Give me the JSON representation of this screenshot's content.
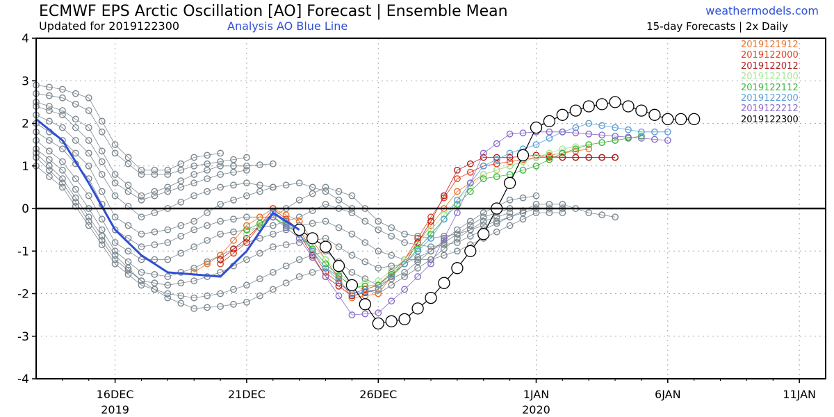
{
  "header": {
    "title": "ECMWF EPS Arctic Oscillation [AO] Forecast | Ensemble Mean",
    "subtitle": "Updated for 2019122300",
    "analysis_label": "Analysis AO Blue Line",
    "brand": "weathermodels.com",
    "subtitle_right": "15-day Forecasts | 2x Daily"
  },
  "chart_data": {
    "type": "line",
    "x_unit": "date",
    "xlim": [
      "2019-12-13",
      "2020-01-12"
    ],
    "ylim": [
      -4,
      4
    ],
    "yticks": [
      -4,
      -3,
      -2,
      -1,
      0,
      1,
      2,
      3,
      4
    ],
    "xticks": [
      {
        "date": "2019-12-16",
        "label": "16DEC",
        "sublabel": "2019"
      },
      {
        "date": "2019-12-21",
        "label": "21DEC",
        "sublabel": ""
      },
      {
        "date": "2019-12-26",
        "label": "26DEC",
        "sublabel": ""
      },
      {
        "date": "2020-01-01",
        "label": "1JAN",
        "sublabel": "2020"
      },
      {
        "date": "2020-01-06",
        "label": "6JAN",
        "sublabel": ""
      },
      {
        "date": "2020-01-11",
        "label": "11JAN",
        "sublabel": ""
      }
    ],
    "grid": true,
    "zero_line": true,
    "legend_position": "top-right",
    "analysis": {
      "color": "#2f4fd6",
      "points": [
        [
          "2019-12-13",
          2.1
        ],
        [
          "2019-12-14",
          1.6
        ],
        [
          "2019-12-15",
          0.6
        ],
        [
          "2019-12-16",
          -0.5
        ],
        [
          "2019-12-17",
          -1.1
        ],
        [
          "2019-12-18",
          -1.5
        ],
        [
          "2019-12-19",
          -1.55
        ],
        [
          "2019-12-20",
          -1.6
        ],
        [
          "2019-12-21",
          -1.0
        ],
        [
          "2019-12-22",
          -0.1
        ],
        [
          "2019-12-23",
          -0.5
        ]
      ]
    },
    "series": [
      {
        "name": "2019121912",
        "color": "#e8742a",
        "start": "2019-12-19",
        "values": [
          -1.5,
          -1.1,
          -0.4,
          0.0,
          -0.3,
          -1.2,
          -2.1,
          -2.0,
          -1.2,
          -0.4,
          0.4,
          0.8,
          1.0,
          1.2,
          1.3,
          1.4
        ]
      },
      {
        "name": "2019122000",
        "color": "#e0421f",
        "start": "2019-12-20",
        "values": [
          -1.3,
          -0.8,
          0.0,
          -0.5,
          -1.5,
          -2.0,
          -1.8,
          -1.2,
          -0.2,
          0.7,
          1.0,
          1.1,
          1.2,
          1.2,
          1.2,
          1.2
        ]
      },
      {
        "name": "2019122012",
        "color": "#b22020",
        "start": "2019-12-20",
        "values": [
          -1.2,
          -0.7,
          -0.1,
          -0.6,
          -1.6,
          -2.05,
          -1.9,
          -1.3,
          -0.3,
          0.9,
          1.2,
          1.2,
          1.25,
          1.2,
          1.2,
          1.2
        ]
      },
      {
        "name": "2019122100",
        "color": "#a6e69a",
        "start": "2019-12-21",
        "values": [
          -0.6,
          -0.2,
          -0.5,
          -1.2,
          -1.8,
          -1.7,
          -1.2,
          -0.5,
          0.2,
          0.8,
          1.0,
          1.2,
          1.4,
          1.5,
          1.6,
          1.7
        ]
      },
      {
        "name": "2019122112",
        "color": "#3db63d",
        "start": "2019-12-21",
        "values": [
          -0.5,
          -0.2,
          -0.6,
          -1.3,
          -1.85,
          -1.8,
          -1.3,
          -0.6,
          0.1,
          0.7,
          0.8,
          1.0,
          1.3,
          1.5,
          1.6,
          1.7
        ]
      },
      {
        "name": "2019122200",
        "color": "#5aa0d8",
        "start": "2019-12-22",
        "values": [
          -0.1,
          -0.6,
          -1.4,
          -2.0,
          -1.9,
          -1.3,
          -0.7,
          0.2,
          1.0,
          1.3,
          1.5,
          1.8,
          2.0,
          1.9,
          1.8,
          1.8
        ]
      },
      {
        "name": "2019122212",
        "color": "#8a6cc8",
        "start": "2019-12-22",
        "values": [
          -0.2,
          -0.7,
          -1.6,
          -2.5,
          -2.45,
          -1.9,
          -1.3,
          -0.1,
          1.3,
          1.75,
          1.8,
          1.8,
          1.75,
          1.7,
          1.65,
          1.6
        ]
      },
      {
        "name": "2019122300",
        "color": "#000000",
        "start": "2019-12-23",
        "values": [
          -0.5,
          -0.9,
          -1.8,
          -2.7,
          -2.6,
          -2.1,
          -1.4,
          -0.6,
          0.6,
          1.9,
          2.2,
          2.4,
          2.5,
          2.3,
          2.1,
          2.1
        ]
      }
    ]
  }
}
